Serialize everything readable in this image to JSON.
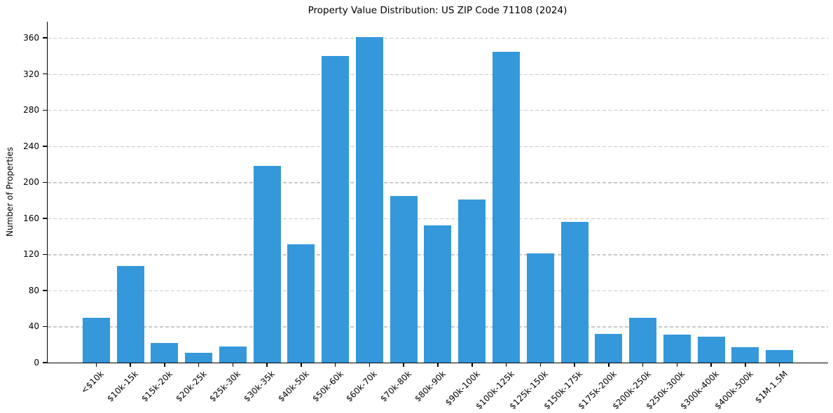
{
  "chart_data": {
    "type": "bar",
    "title": "Property Value Distribution: US ZIP Code 71108 (2024)",
    "xlabel": "",
    "ylabel": "Number of Properties",
    "categories": [
      "<$10k",
      "$10k-15k",
      "$15k-20k",
      "$20k-25k",
      "$25k-30k",
      "$30k-35k",
      "$40k-50k",
      "$50k-60k",
      "$60k-70k",
      "$70k-80k",
      "$80k-90k",
      "$90k-100k",
      "$100k-125k",
      "$125k-150k",
      "$150k-175k",
      "$175k-200k",
      "$200k-250k",
      "$250k-300k",
      "$300k-400k",
      "$400k-500k",
      "$1M-1.5M"
    ],
    "values": [
      50,
      107,
      22,
      11,
      18,
      218,
      131,
      340,
      361,
      185,
      152,
      181,
      345,
      121,
      156,
      32,
      50,
      31,
      29,
      17,
      14
    ],
    "yticks": [
      0,
      40,
      80,
      120,
      160,
      200,
      240,
      280,
      320,
      360
    ],
    "ylim": [
      0,
      378
    ],
    "bar_color": "#3498db",
    "grid": true,
    "grid_axis": "y",
    "grid_line_style": "dashed",
    "grid_color": "#c9c9c9",
    "axis_color": "#000000",
    "background_color": "#ffffff",
    "legend_position": "none",
    "bar_width_fraction": 0.8,
    "x_tick_rotation_deg": 45
  }
}
